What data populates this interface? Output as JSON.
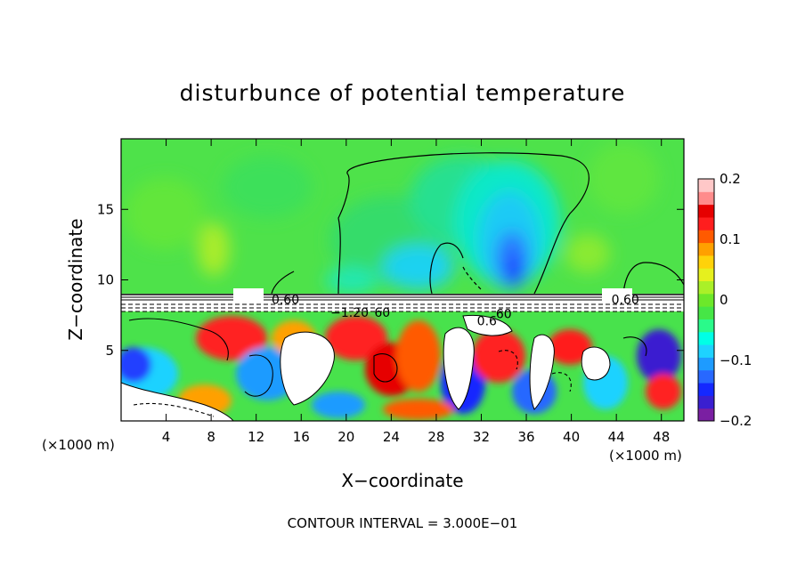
{
  "chart_data": {
    "type": "heatmap",
    "title": "disturbunce of potential temperature",
    "xlabel": "X−coordinate",
    "ylabel": "Z−coordinate",
    "x_unit_left": "(×1000 m)",
    "x_unit_right": "(×1000 m)",
    "footer": "CONTOUR INTERVAL = 3.000E−01",
    "xlim": [
      0,
      50
    ],
    "ylim": [
      0,
      20
    ],
    "xticks": [
      4,
      8,
      12,
      16,
      20,
      24,
      28,
      32,
      36,
      40,
      44,
      48
    ],
    "xtick_labels": [
      "4",
      "8",
      "12",
      "16",
      "20",
      "24",
      "28",
      "32",
      "36",
      "40",
      "44",
      "48"
    ],
    "yticks": [
      5,
      10,
      15
    ],
    "ytick_labels": [
      "5",
      "10",
      "15"
    ],
    "colorbar": {
      "range": [
        -0.2,
        0.2
      ],
      "tick_values": [
        0.2,
        0.1,
        0,
        -0.1,
        -0.2
      ],
      "tick_labels": [
        "0.2",
        "0.1",
        "0",
        "−0.1",
        "−0.2"
      ],
      "colors": [
        "#7a1fa2",
        "#3a1fd0",
        "#1428ff",
        "#2868ff",
        "#1e9bff",
        "#1ed2ff",
        "#00ffe6",
        "#2afa8a",
        "#46e646",
        "#6ce82a",
        "#aaf028",
        "#e6f01e",
        "#ffd20a",
        "#ffa000",
        "#ff5a00",
        "#ff1e1e",
        "#e60000",
        "#ff8c8c",
        "#ffc8c8"
      ]
    },
    "contour_labels": [
      {
        "x": 14.6,
        "y": 8.6,
        "text": "0.60"
      },
      {
        "x": 44.8,
        "y": 8.6,
        "text": "0.60"
      },
      {
        "x": 20.3,
        "y": 7.7,
        "text": "−1.20"
      },
      {
        "x": 23.2,
        "y": 7.7,
        "text": "60"
      },
      {
        "x": 34.0,
        "y": 7.6,
        "text": "60"
      },
      {
        "x": 32.5,
        "y": 7.1,
        "text": "0.6"
      }
    ],
    "field_description_regions": [
      {
        "region": "upper layer z>9",
        "value": 0.0
      },
      {
        "region": "cold plume x 31-38 z 9-14",
        "value": -0.12
      },
      {
        "region": "lower turbulent layer z<8",
        "value": "mixed -0.2..0.2"
      }
    ]
  }
}
